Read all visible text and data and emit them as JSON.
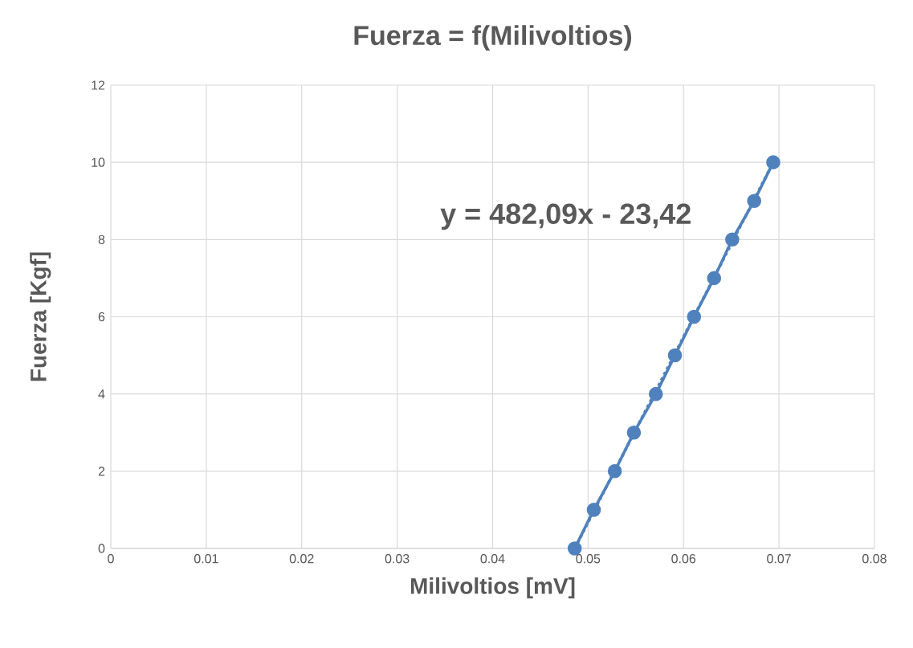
{
  "chart_data": {
    "type": "line",
    "title": "Fuerza = f(Milivoltios)",
    "xlabel": "Milivoltios [mV]",
    "ylabel": "Fuerza [Kgf]",
    "x": [
      0.0486,
      0.0506,
      0.0528,
      0.0548,
      0.0571,
      0.0591,
      0.0611,
      0.0632,
      0.0651,
      0.0674,
      0.0694
    ],
    "series": [
      {
        "color": "#4f81bd",
        "marker": "circle",
        "line_style": "solid",
        "values": [
          0,
          1,
          2,
          3,
          4,
          5,
          6,
          7,
          8,
          9,
          10
        ]
      },
      {
        "type": "line",
        "color": "#4f81bd",
        "marker": "none",
        "line_style": "dotted",
        "x": [
          0.0486,
          0.0694
        ],
        "values": [
          0,
          10
        ]
      }
    ],
    "annotations": [
      "y = 482,09x - 23,42"
    ],
    "xlim": [
      0,
      0.08
    ],
    "xticks": [
      0,
      0.01,
      0.02,
      0.03,
      0.04,
      0.05,
      0.06,
      0.07,
      0.08
    ],
    "ylim": [
      0,
      12
    ],
    "yticks": [
      0,
      2,
      4,
      6,
      8,
      10,
      12
    ],
    "grid": true
  }
}
